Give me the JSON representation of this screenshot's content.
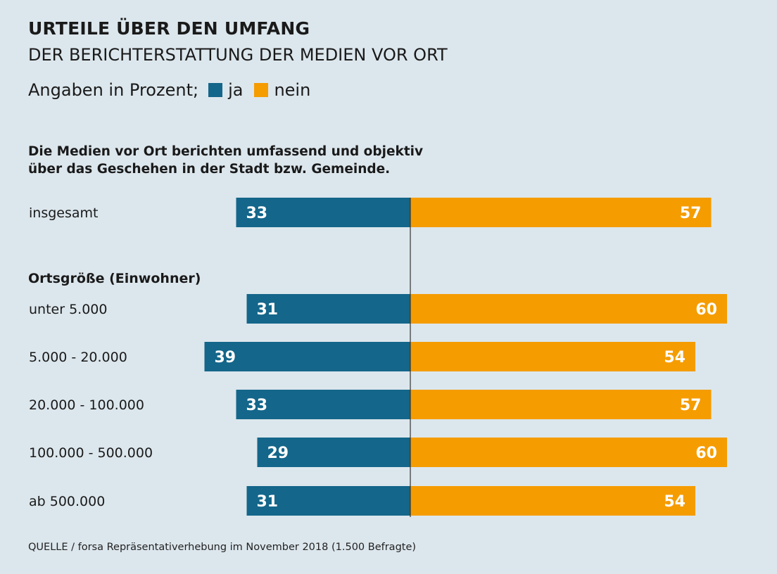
{
  "header": {
    "title": "URTEILE ÜBER DEN UMFANG",
    "subtitle": "DER BERICHTERSTATTUNG DER MEDIEN VOR ORT",
    "legend_prefix": "Angaben in Prozent;",
    "legend_ja": "ja",
    "legend_nein": "nein"
  },
  "question": {
    "line1": "Die Medien vor Ort berichten umfassend und objektiv",
    "line2": "über das Geschehen in der Stadt bzw. Gemeinde."
  },
  "section_label": "Ortsgröße (Einwohner)",
  "source": "QUELLE / forsa Repräsentativerhebung im November 2018 (1.500 Befragte)",
  "colors": {
    "background": "#dce7ed",
    "ja": "#14668a",
    "nein": "#f59c00",
    "axis": "#333333"
  },
  "chart_data": {
    "type": "bar",
    "orientation": "horizontal-diverging",
    "title": "URTEILE ÜBER DEN UMFANG",
    "subtitle": "DER BERICHTERSTATTUNG DER MEDIEN VOR ORT",
    "unit": "Prozent",
    "categories": [
      "insgesamt",
      "unter 5.000",
      "5.000 - 20.000",
      "20.000 - 100.000",
      "100.000 - 500.000",
      "ab 500.000"
    ],
    "series": [
      {
        "name": "ja",
        "values": [
          33,
          31,
          39,
          33,
          29,
          31
        ]
      },
      {
        "name": "nein",
        "values": [
          57,
          60,
          54,
          57,
          60,
          54
        ]
      }
    ],
    "xlim": [
      -40,
      60
    ],
    "grid": false,
    "legend": "top-left"
  }
}
